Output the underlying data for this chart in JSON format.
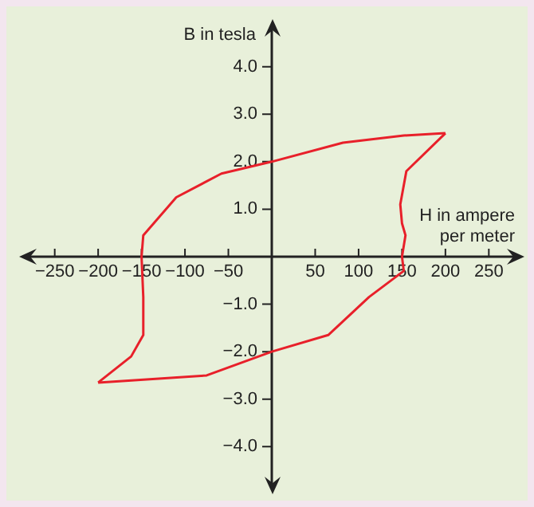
{
  "chart_data": {
    "type": "line",
    "xlabel": "H in ampere per meter",
    "ylabel": "B in tesla",
    "xlim": [
      -280,
      280
    ],
    "ylim": [
      -4.8,
      4.8
    ],
    "xticks": [
      {
        "value": -250,
        "label": "−250"
      },
      {
        "value": -200,
        "label": "−200"
      },
      {
        "value": -150,
        "label": "−150"
      },
      {
        "value": -100,
        "label": "−100"
      },
      {
        "value": -50,
        "label": "−50"
      },
      {
        "value": 0,
        "label": null
      },
      50,
      100,
      150,
      200,
      250
    ],
    "yticks": [
      {
        "value": -4,
        "label": "−4.0"
      },
      {
        "value": -3,
        "label": "−3.0"
      },
      {
        "value": -2,
        "label": "−2.0"
      },
      {
        "value": -1,
        "label": "−1.0"
      },
      {
        "value": 0,
        "label": null
      },
      {
        "value": 1,
        "label": "1.0"
      },
      {
        "value": 2,
        "label": "2.0"
      },
      {
        "value": 3,
        "label": "3.0"
      },
      {
        "value": 4,
        "label": "4.0"
      }
    ],
    "grid": false,
    "marker": "none",
    "line_style": "solid",
    "series": [
      {
        "color": "#e8202a",
        "x": [
          200,
          155,
          148,
          150,
          154,
          150,
          152,
          112,
          65,
          0,
          -75,
          -200
        ],
        "values": [
          2.6,
          1.8,
          1.1,
          0.7,
          0.45,
          0,
          -0.3,
          -0.85,
          -1.65,
          -2.0,
          -2.5,
          -2.65
        ]
      },
      {
        "color": "#e8202a",
        "x": [
          -200,
          -162,
          -148,
          -148,
          -150,
          -148,
          -110,
          -58,
          0,
          82,
          152,
          200
        ],
        "values": [
          -2.65,
          -2.1,
          -1.65,
          -0.85,
          0,
          0.45,
          1.25,
          1.75,
          2.0,
          2.4,
          2.55,
          2.6
        ]
      }
    ]
  }
}
